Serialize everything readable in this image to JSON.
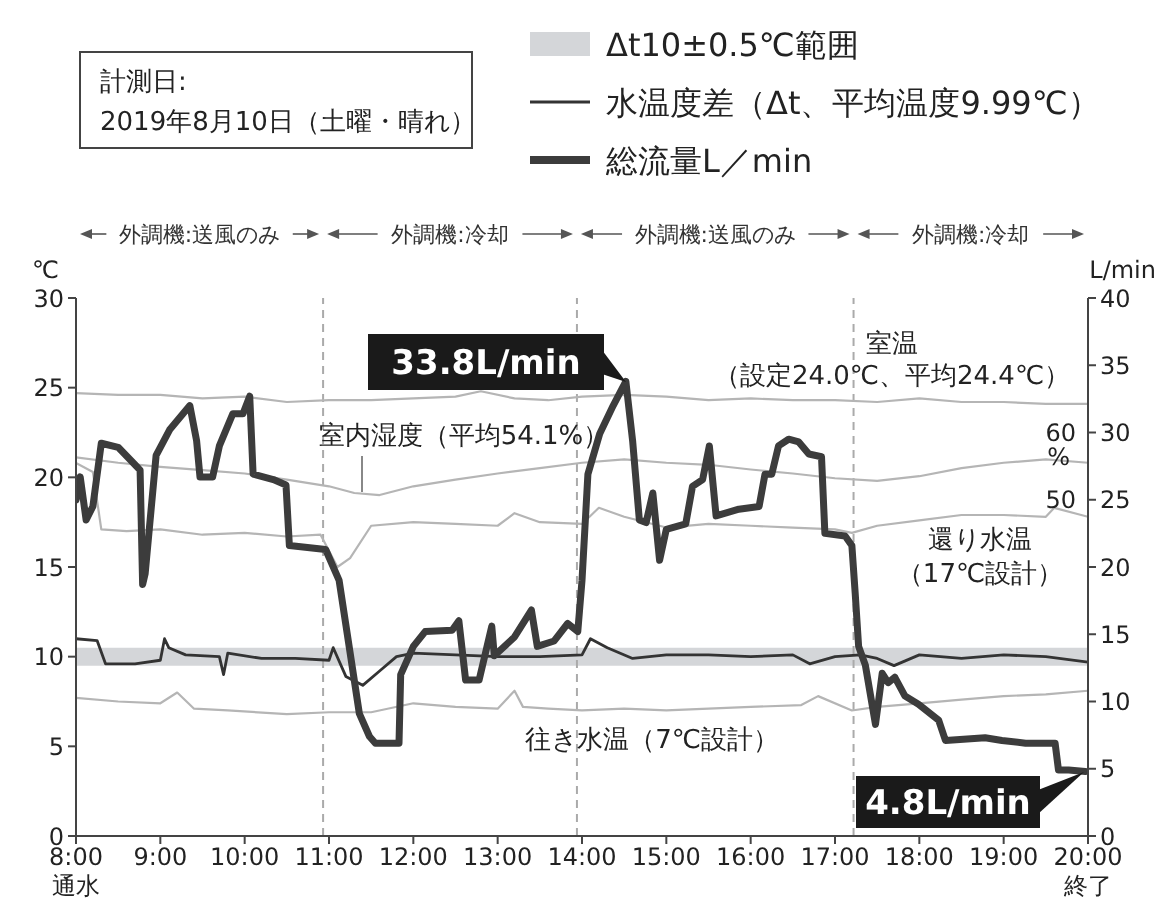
{
  "chart_data": {
    "type": "line",
    "title": "計測日:",
    "subtitle": "2019年8月10日（土曜・晴れ）",
    "ylabel": "℃",
    "y2label": "L/min",
    "y3label": "%",
    "xlim": [
      8,
      20
    ],
    "xticks": [
      {
        "value": 8,
        "label": "8:00"
      },
      {
        "value": 9,
        "label": "9:00"
      },
      {
        "value": 10,
        "label": "10:00"
      },
      {
        "value": 11,
        "label": "11:00"
      },
      {
        "value": 12,
        "label": "12:00"
      },
      {
        "value": 13,
        "label": "13:00"
      },
      {
        "value": 14,
        "label": "14:00"
      },
      {
        "value": 15,
        "label": "15:00"
      },
      {
        "value": 16,
        "label": "16:00"
      },
      {
        "value": 17,
        "label": "17:00"
      },
      {
        "value": 18,
        "label": "18:00"
      },
      {
        "value": 19,
        "label": "19:00"
      },
      {
        "value": 20,
        "label": "20:00"
      }
    ],
    "ylim": [
      0,
      30
    ],
    "yticks": [
      0,
      5,
      10,
      15,
      20,
      25,
      30
    ],
    "y2lim": [
      0,
      40
    ],
    "y2ticks": [
      0,
      5,
      10,
      15,
      20,
      25,
      30,
      35,
      40
    ],
    "y3lim": [
      0,
      80
    ],
    "y3ticks": [
      50,
      60
    ],
    "marker": "none",
    "legend": "top right",
    "bands": [
      {
        "axis": "y",
        "from": 9.5,
        "to": 10.5,
        "label": "Δt10±0.5℃範囲",
        "color": "#d4d6d9"
      }
    ],
    "ref_lines": [
      {
        "axis": "x",
        "value": 10.93,
        "color": "#aaaaaa",
        "line_style": "dashed"
      },
      {
        "axis": "x",
        "value": 13.94,
        "color": "#aaaaaa",
        "line_style": "dashed"
      },
      {
        "axis": "x",
        "value": 17.22,
        "color": "#aaaaaa",
        "line_style": "dashed"
      }
    ],
    "annotations": [
      "外調機:送風のみ",
      "外調機:冷却",
      "外調機:送風のみ",
      "外調機:冷却",
      "33.8L/min",
      "4.8L/min",
      "通水",
      "終了"
    ],
    "series": [
      {
        "name": "室温（設定24.0℃、平均24.4℃）",
        "color": "#b5b5b5",
        "x": [
          8,
          8.5,
          9,
          9.5,
          10,
          10.5,
          11,
          11.5,
          12,
          12.5,
          12.8,
          13.2,
          13.6,
          14,
          14.5,
          15,
          15.5,
          16,
          16.5,
          17,
          17.5,
          18,
          18.5,
          19,
          19.5,
          20
        ],
        "values": [
          24.7,
          24.6,
          24.6,
          24.4,
          24.5,
          24.2,
          24.3,
          24.3,
          24.4,
          24.5,
          24.8,
          24.4,
          24.3,
          24.5,
          24.6,
          24.5,
          24.3,
          24.4,
          24.3,
          24.3,
          24.2,
          24.4,
          24.2,
          24.2,
          24.1,
          24.1
        ]
      },
      {
        "name": "室内湿度（平均54.1%）",
        "color": "#b5b5b5",
        "axis": "y3",
        "x": [
          8,
          8.5,
          9,
          9.5,
          10,
          10.5,
          11,
          11.3,
          11.6,
          12,
          12.5,
          13,
          13.5,
          14,
          14.5,
          15,
          15.5,
          16,
          16.5,
          17,
          17.5,
          18,
          18.5,
          19,
          19.5,
          20
        ],
        "values": [
          56.3,
          55.5,
          54.9,
          54.4,
          53.9,
          53.0,
          52.0,
          51.0,
          50.7,
          52.0,
          53.0,
          53.9,
          54.7,
          55.5,
          56.0,
          55.5,
          55.2,
          54.5,
          53.9,
          53.2,
          52.8,
          53.5,
          54.7,
          55.5,
          56.0,
          55.5
        ]
      },
      {
        "name": "還り水温（17℃設計）",
        "color": "#b5b5b5",
        "x": [
          8,
          8.2,
          8.3,
          8.6,
          9,
          9.5,
          10,
          10.5,
          10.9,
          11.1,
          11.25,
          11.5,
          12,
          12.5,
          13,
          13.2,
          13.5,
          14,
          14.2,
          14.5,
          15,
          15.5,
          16,
          16.5,
          17,
          17.2,
          17.5,
          18,
          18.5,
          19,
          19.5,
          19.6,
          20
        ],
        "values": [
          20.8,
          20.3,
          17.1,
          17.0,
          17.1,
          16.8,
          16.9,
          16.7,
          16.8,
          15.0,
          15.5,
          17.3,
          17.5,
          17.4,
          17.3,
          18.0,
          17.5,
          17.4,
          18.3,
          17.8,
          17.2,
          17.4,
          17.3,
          17.2,
          17.1,
          16.9,
          17.3,
          17.6,
          17.9,
          17.9,
          17.8,
          18.3,
          17.8
        ]
      },
      {
        "name": "往き水温（7℃設計）",
        "color": "#b5b5b5",
        "x": [
          8,
          8.5,
          9,
          9.2,
          9.4,
          9.8,
          10.5,
          11,
          11.5,
          12,
          12.5,
          13,
          13.2,
          13.3,
          13.6,
          14,
          14.5,
          15,
          15.5,
          16,
          16.6,
          16.8,
          17.2,
          17.5,
          18,
          18.5,
          19,
          19.5,
          20
        ],
        "values": [
          7.7,
          7.5,
          7.4,
          8.0,
          7.1,
          7.0,
          6.8,
          6.9,
          6.9,
          7.4,
          7.2,
          7.1,
          8.1,
          7.2,
          7.1,
          7.0,
          7.1,
          7.0,
          7.1,
          7.2,
          7.3,
          7.8,
          7.0,
          7.2,
          7.4,
          7.6,
          7.8,
          7.9,
          8.1
        ]
      },
      {
        "name": "水温度差（Δt、平均温度9.99℃）",
        "color": "#333333",
        "x": [
          8,
          8.25,
          8.35,
          8.7,
          9,
          9.05,
          9.1,
          9.3,
          9.7,
          9.75,
          9.8,
          10.2,
          10.6,
          11,
          11.05,
          11.2,
          11.4,
          11.6,
          11.8,
          12,
          12.5,
          13,
          13.5,
          14,
          14.1,
          14.3,
          14.6,
          15,
          15.5,
          16,
          16.5,
          16.7,
          17,
          17.3,
          17.5,
          17.7,
          18,
          18.5,
          19,
          19.5,
          20
        ],
        "values": [
          11.0,
          10.9,
          9.6,
          9.6,
          9.8,
          11.0,
          10.5,
          10.1,
          10.0,
          9.0,
          10.2,
          9.9,
          9.9,
          9.8,
          10.5,
          8.9,
          8.4,
          9.2,
          10.0,
          10.2,
          10.1,
          10.0,
          10.0,
          10.1,
          11.0,
          10.5,
          9.9,
          10.1,
          10.1,
          10.0,
          10.1,
          9.6,
          10.0,
          10.1,
          9.9,
          9.5,
          10.1,
          9.9,
          10.1,
          10.0,
          9.7
        ]
      },
      {
        "name": "総流量L／min",
        "color": "#3c3c3c",
        "axis": "y2",
        "x": [
          8.0,
          8.05,
          8.12,
          8.2,
          8.3,
          8.5,
          8.7,
          8.76,
          8.79,
          8.82,
          8.95,
          9.11,
          9.35,
          9.43,
          9.47,
          9.62,
          9.7,
          9.86,
          9.98,
          10.06,
          10.1,
          10.34,
          10.49,
          10.53,
          10.96,
          11.12,
          11.36,
          11.48,
          11.55,
          11.83,
          11.85,
          12.0,
          12.14,
          12.46,
          12.54,
          12.62,
          12.78,
          12.93,
          12.96,
          13.2,
          13.4,
          13.47,
          13.67,
          13.83,
          13.95,
          14.0,
          14.07,
          14.21,
          14.37,
          14.52,
          14.6,
          14.68,
          14.76,
          14.84,
          14.92,
          15.0,
          15.23,
          15.31,
          15.43,
          15.51,
          15.59,
          15.86,
          16.1,
          16.17,
          16.25,
          16.33,
          16.45,
          16.57,
          16.69,
          16.84,
          16.88,
          17.12,
          17.2,
          17.24,
          17.28,
          17.36,
          17.48,
          17.56,
          17.63,
          17.71,
          17.83,
          17.99,
          18.23,
          18.31,
          18.78,
          18.98,
          19.26,
          19.61,
          19.65,
          19.77,
          19.97
        ],
        "values": [
          25.0,
          26.7,
          23.5,
          24.5,
          29.2,
          28.9,
          27.6,
          27.2,
          18.7,
          19.5,
          28.3,
          30.2,
          32.0,
          29.4,
          26.7,
          26.7,
          29.0,
          31.4,
          31.4,
          32.7,
          26.9,
          26.5,
          26.1,
          21.6,
          21.3,
          19.0,
          9.1,
          7.4,
          6.9,
          6.9,
          12.0,
          14.1,
          15.2,
          15.3,
          16.0,
          11.6,
          11.6,
          15.6,
          13.4,
          14.8,
          16.8,
          14.1,
          14.5,
          15.8,
          15.2,
          19.0,
          26.9,
          29.9,
          32.0,
          33.8,
          29.4,
          23.5,
          23.3,
          25.5,
          20.5,
          22.8,
          23.2,
          26.0,
          26.5,
          29.0,
          23.8,
          24.3,
          24.5,
          26.9,
          26.9,
          29.0,
          29.5,
          29.3,
          28.4,
          28.2,
          22.5,
          22.3,
          21.6,
          18.0,
          14.1,
          12.7,
          8.3,
          12.1,
          11.4,
          11.8,
          10.4,
          9.8,
          8.6,
          7.1,
          7.3,
          7.1,
          6.9,
          6.9,
          4.9,
          4.9,
          4.8
        ]
      }
    ]
  }
}
